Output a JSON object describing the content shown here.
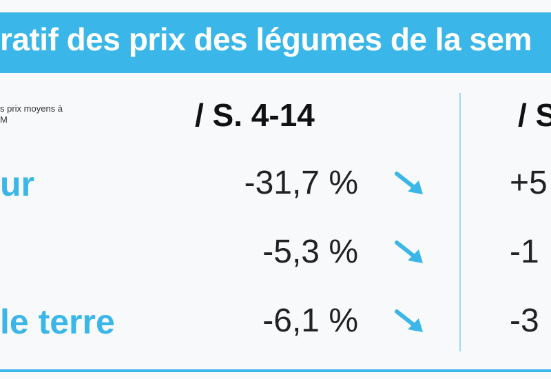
{
  "header": {
    "title": "ratif des prix des légumes de la sem"
  },
  "table": {
    "note": [
      "s prix moyens à",
      "M"
    ],
    "columns": [
      "/ S. 4-14",
      "/ S"
    ],
    "rows": [
      {
        "label": "ur",
        "values": [
          "-31,7 %",
          "+5"
        ]
      },
      {
        "values": [
          "-5,3 %",
          "-1"
        ]
      },
      {
        "label": "le terre",
        "values": [
          "-6,1 %",
          "-3"
        ]
      }
    ]
  }
}
